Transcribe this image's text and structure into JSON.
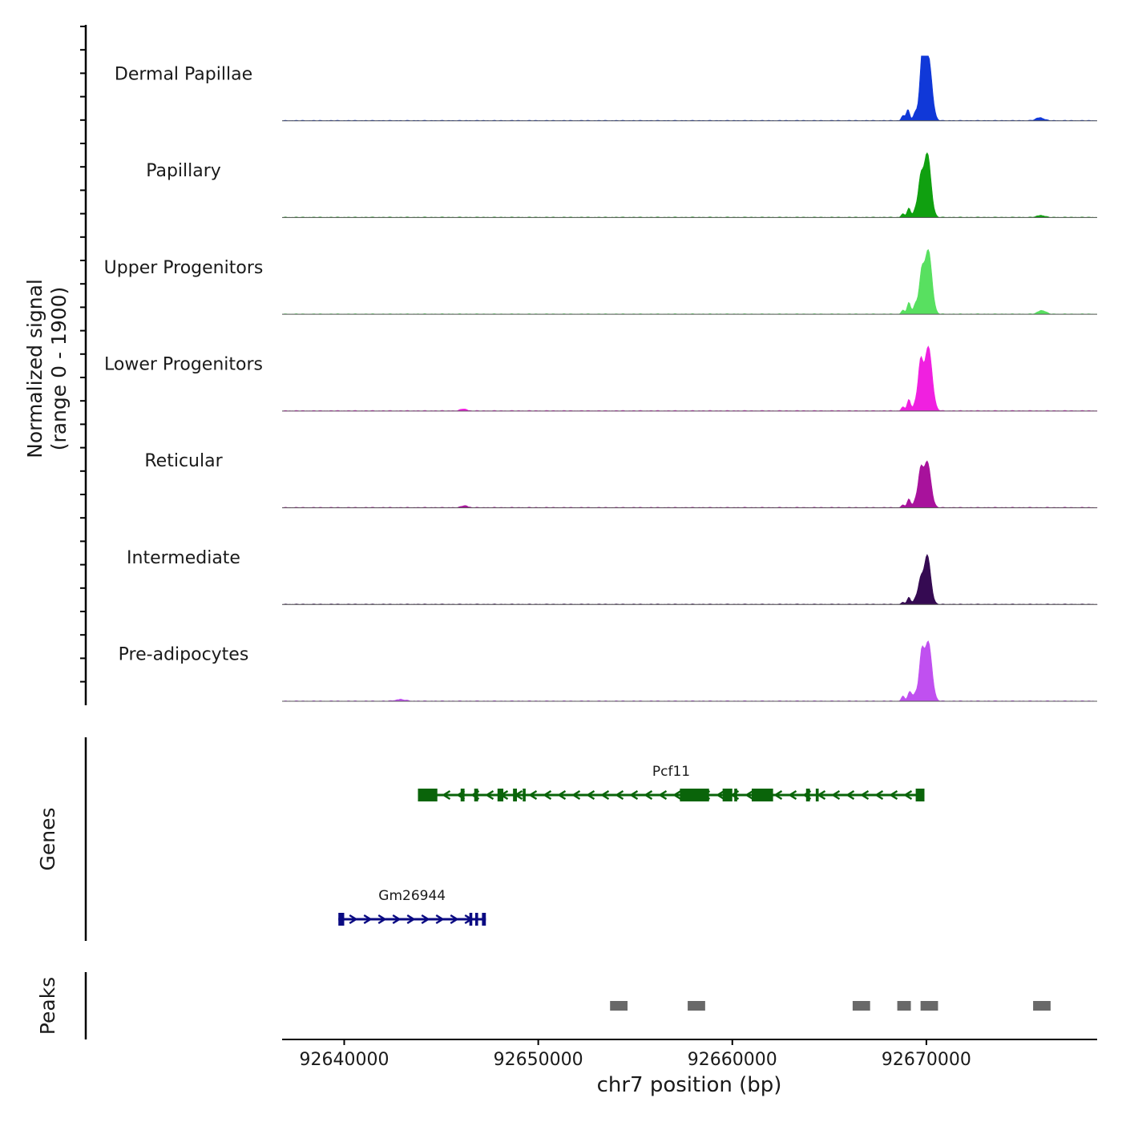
{
  "chart_data": {
    "type": "area",
    "title": "",
    "xlabel": "chr7 position (bp)",
    "xlim": [
      92636800,
      92678800
    ],
    "x_ticks": [
      {
        "value": 92640000,
        "label": "92640000"
      },
      {
        "value": 92650000,
        "label": "92650000"
      },
      {
        "value": 92660000,
        "label": "92660000"
      },
      {
        "value": 92670000,
        "label": "92670000"
      }
    ],
    "coverage": {
      "ylabel_line1": "Normalized signal",
      "ylabel_line2": "(range 0 - 1900)",
      "ylim": [
        0,
        1900
      ],
      "series": [
        {
          "name": "Dermal Papillae",
          "color": "#1038d8",
          "peaks": [
            [
              92670100,
              1900,
              180
            ],
            [
              92669780,
              1750,
              120
            ],
            [
              92669050,
              320,
              90
            ],
            [
              92669450,
              260,
              110
            ],
            [
              92668800,
              150,
              80
            ],
            [
              92675850,
              90,
              200
            ]
          ]
        },
        {
          "name": "Papillary",
          "color": "#10a010",
          "peaks": [
            [
              92670050,
              1900,
              180
            ],
            [
              92669700,
              1000,
              120
            ],
            [
              92669100,
              270,
              90
            ],
            [
              92669450,
              240,
              110
            ],
            [
              92668800,
              110,
              80
            ],
            [
              92675900,
              60,
              200
            ]
          ]
        },
        {
          "name": "Upper Progenitors",
          "color": "#58e060",
          "peaks": [
            [
              92670100,
              1900,
              180
            ],
            [
              92669750,
              1100,
              120
            ],
            [
              92669100,
              340,
              90
            ],
            [
              92669450,
              310,
              110
            ],
            [
              92668800,
              120,
              80
            ],
            [
              92675950,
              110,
              200
            ]
          ]
        },
        {
          "name": "Lower Progenitors",
          "color": "#f020e0",
          "peaks": [
            [
              92670100,
              1900,
              190
            ],
            [
              92669700,
              1350,
              120
            ],
            [
              92669100,
              330,
              90
            ],
            [
              92669450,
              240,
              110
            ],
            [
              92668800,
              120,
              80
            ],
            [
              92646150,
              60,
              150
            ]
          ]
        },
        {
          "name": "Reticular",
          "color": "#a8129c",
          "peaks": [
            [
              92670050,
              1350,
              180
            ],
            [
              92669700,
              1000,
              120
            ],
            [
              92669100,
              250,
              90
            ],
            [
              92669450,
              220,
              110
            ],
            [
              92668800,
              80,
              80
            ],
            [
              92646200,
              60,
              150
            ]
          ]
        },
        {
          "name": "Intermediate",
          "color": "#350a52",
          "peaks": [
            [
              92670050,
              1450,
              170
            ],
            [
              92669700,
              650,
              120
            ],
            [
              92669100,
              200,
              90
            ],
            [
              92669450,
              170,
              110
            ],
            [
              92668800,
              60,
              80
            ]
          ]
        },
        {
          "name": "Pre-adipocytes",
          "color": "#c050f0",
          "peaks": [
            [
              92670100,
              1750,
              180
            ],
            [
              92669750,
              1300,
              120
            ],
            [
              92669150,
              280,
              100
            ],
            [
              92669450,
              230,
              110
            ],
            [
              92668800,
              150,
              80
            ],
            [
              92642900,
              50,
              250
            ]
          ]
        }
      ]
    },
    "genes": {
      "ylabel": "Genes",
      "items": [
        {
          "name": "Pcf11",
          "strand": "-",
          "color": "#0a640a",
          "start": 92643800,
          "end": 92669900,
          "exons": [
            [
              92643800,
              92644800
            ],
            [
              92646000,
              92646200
            ],
            [
              92646700,
              92646900
            ],
            [
              92647900,
              92648200
            ],
            [
              92648700,
              92648900
            ],
            [
              92649200,
              92649350
            ],
            [
              92657300,
              92658800
            ],
            [
              92659500,
              92660000
            ],
            [
              92660100,
              92660250
            ],
            [
              92661000,
              92662100
            ],
            [
              92663800,
              92664000
            ],
            [
              92664300,
              92664450
            ],
            [
              92669450,
              92669900
            ]
          ]
        },
        {
          "name": "Gm26944",
          "strand": "+",
          "color": "#0a0a82",
          "start": 92639700,
          "end": 92647300,
          "exons": [
            [
              92639700,
              92640000
            ],
            [
              92646450,
              92646600
            ],
            [
              92646750,
              92646900
            ],
            [
              92647100,
              92647300
            ]
          ]
        }
      ]
    },
    "peaks": {
      "ylabel": "Peaks",
      "color": "#696969",
      "regions": [
        [
          92653700,
          92654600
        ],
        [
          92657700,
          92658600
        ],
        [
          92666200,
          92667100
        ],
        [
          92668500,
          92669200
        ],
        [
          92669700,
          92670600
        ],
        [
          92675500,
          92676400
        ]
      ]
    }
  }
}
